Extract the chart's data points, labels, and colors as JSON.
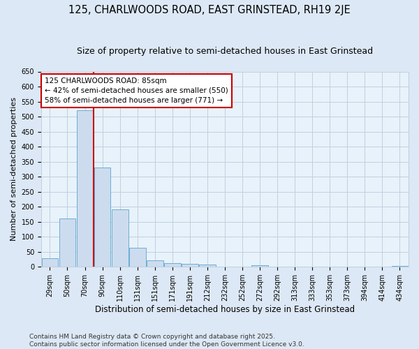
{
  "title": "125, CHARLWOODS ROAD, EAST GRINSTEAD, RH19 2JE",
  "subtitle": "Size of property relative to semi-detached houses in East Grinstead",
  "xlabel": "Distribution of semi-detached houses by size in East Grinstead",
  "ylabel": "Number of semi-detached properties",
  "categories": [
    "29sqm",
    "50sqm",
    "70sqm",
    "90sqm",
    "110sqm",
    "131sqm",
    "151sqm",
    "171sqm",
    "191sqm",
    "212sqm",
    "232sqm",
    "252sqm",
    "272sqm",
    "292sqm",
    "313sqm",
    "333sqm",
    "353sqm",
    "373sqm",
    "394sqm",
    "414sqm",
    "434sqm"
  ],
  "values": [
    28,
    160,
    520,
    330,
    190,
    63,
    22,
    12,
    10,
    8,
    0,
    0,
    5,
    0,
    0,
    0,
    0,
    0,
    0,
    0,
    4
  ],
  "bar_color": "#ccdcee",
  "bar_edge_color": "#6baed6",
  "grid_color": "#c0cfe0",
  "background_color": "#dce8f5",
  "plot_bg_color": "#e8f2fa",
  "vline_x": 3.0,
  "vline_color": "#cc0000",
  "annotation_text": "125 CHARLWOODS ROAD: 85sqm\n← 42% of semi-detached houses are smaller (550)\n58% of semi-detached houses are larger (771) →",
  "annotation_box_facecolor": "#ffffff",
  "annotation_box_edgecolor": "#cc0000",
  "ylim": [
    0,
    650
  ],
  "yticks": [
    0,
    50,
    100,
    150,
    200,
    250,
    300,
    350,
    400,
    450,
    500,
    550,
    600,
    650
  ],
  "footer_line1": "Contains HM Land Registry data © Crown copyright and database right 2025.",
  "footer_line2": "Contains public sector information licensed under the Open Government Licence v3.0.",
  "title_fontsize": 10.5,
  "subtitle_fontsize": 9,
  "tick_fontsize": 7,
  "ylabel_fontsize": 8,
  "xlabel_fontsize": 8.5,
  "footer_fontsize": 6.5,
  "ann_fontsize": 7.5
}
